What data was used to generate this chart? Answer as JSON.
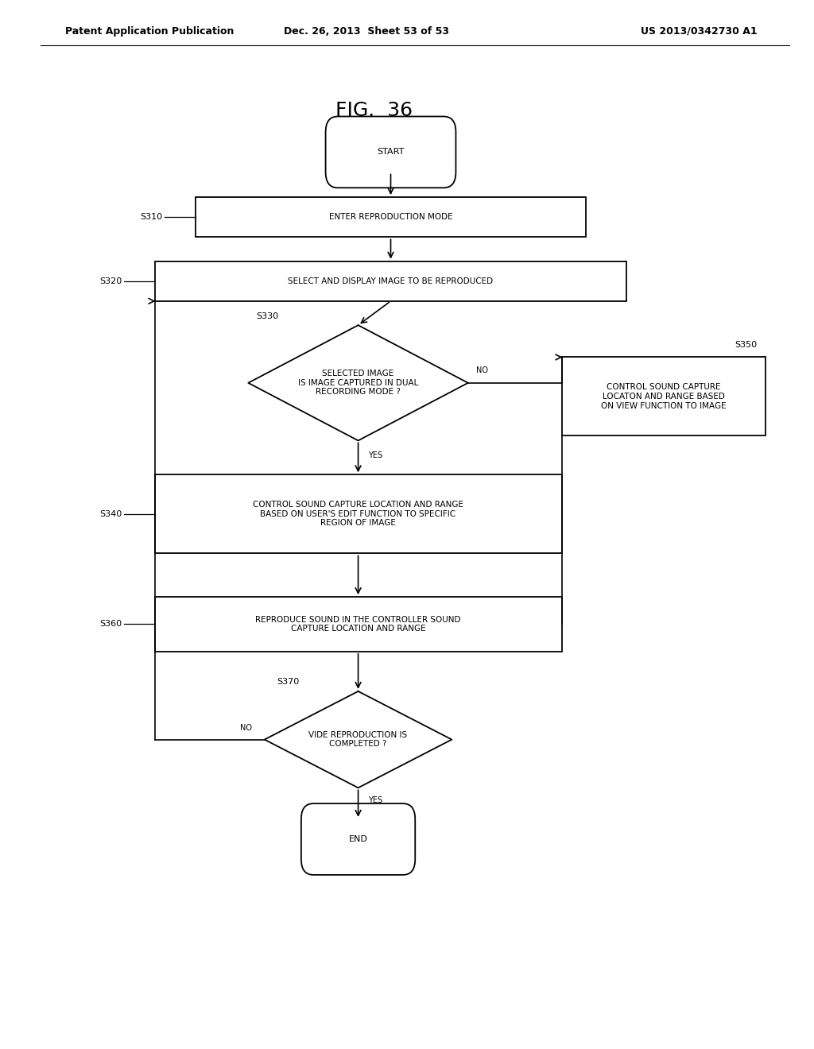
{
  "title": "FIG.  36",
  "header_left": "Patent Application Publication",
  "header_center": "Dec. 26, 2013  Sheet 53 of 53",
  "header_right": "US 2013/0342730 A1",
  "bg_color": "#ffffff",
  "start_label": "START",
  "end_label": "END",
  "s310_label": "ENTER REPRODUCTION MODE",
  "s310_step": "S310",
  "s320_label": "SELECT AND DISPLAY IMAGE TO BE REPRODUCED",
  "s320_step": "S320",
  "s330_label": "SELECTED IMAGE\nIS IMAGE CAPTURED IN DUAL\nRECORDING MODE ?",
  "s330_step": "S330",
  "s340_label": "CONTROL SOUND CAPTURE LOCATION AND RANGE\nBASED ON USER'S EDIT FUNCTION TO SPECIFIC\nREGION OF IMAGE",
  "s340_step": "S340",
  "s350_label": "CONTROL SOUND CAPTURE\nLOCATON AND RANGE BASED\nON VIEW FUNCTION TO IMAGE",
  "s350_step": "S350",
  "s360_label": "REPRODUCE SOUND IN THE CONTROLLER SOUND\nCAPTURE LOCATION AND RANGE",
  "s360_step": "S360",
  "s370_label": "VIDE REPRODUCTION IS\nCOMPLETED ?",
  "s370_step": "S370",
  "yes_label": "YES",
  "no_label": "NO",
  "font_size_nodes": 7.5,
  "font_size_header": 9,
  "font_size_title": 18,
  "font_size_step": 8,
  "font_size_yesno": 7
}
